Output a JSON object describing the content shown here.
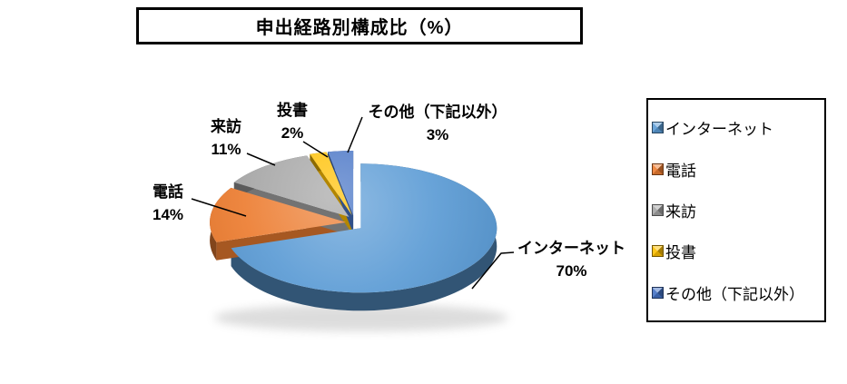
{
  "title": "申出経路別構成比（%）",
  "chart_data": {
    "type": "pie",
    "style": "3d-exploded",
    "title": "申出経路別構成比（%）",
    "categories": [
      "インターネット",
      "電話",
      "来訪",
      "投書",
      "その他（下記以外）"
    ],
    "values": [
      70,
      14,
      11,
      2,
      3
    ],
    "unit": "%",
    "colors": [
      "#5B9BD5",
      "#ED7D31",
      "#A5A5A5",
      "#FFC000",
      "#4472C4"
    ],
    "start_angle_deg": 0,
    "direction": "clockwise",
    "legend_position": "right",
    "callouts": [
      {
        "text": "インターネット",
        "value": "70%"
      },
      {
        "text": "電話",
        "value": "14%"
      },
      {
        "text": "来訪",
        "value": "11%"
      },
      {
        "text": "投書",
        "value": "2%"
      },
      {
        "text": "その他（下記以外）",
        "value": "3%"
      }
    ]
  },
  "legend": {
    "items": [
      {
        "label": "インターネット",
        "color": "#5B9BD5"
      },
      {
        "label": "電話",
        "color": "#ED7D31"
      },
      {
        "label": "来訪",
        "color": "#A5A5A5"
      },
      {
        "label": "投書",
        "color": "#FFC000"
      },
      {
        "label": "その他（下記以外）",
        "color": "#4472C4"
      }
    ]
  }
}
